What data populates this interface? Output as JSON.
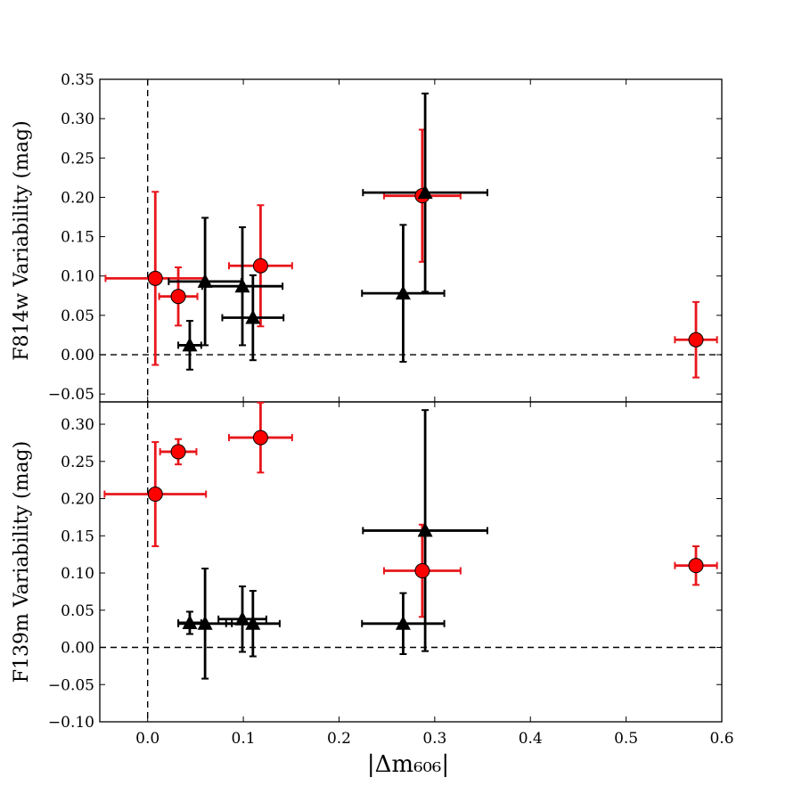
{
  "chart_data": {
    "type": "scatter",
    "xlabel": "|Δm₆₀₆|",
    "xlim": [
      -0.05,
      0.6
    ],
    "xticks": [
      0.0,
      0.1,
      0.2,
      0.3,
      0.4,
      0.5,
      0.6
    ],
    "xtick_labels": [
      "0.0",
      "0.1",
      "0.2",
      "0.3",
      "0.4",
      "0.5",
      "0.6"
    ],
    "series_styles": {
      "circles": {
        "marker": "circle",
        "fill": "#ff0000",
        "errorbar_color": "#e8161b"
      },
      "triangles": {
        "marker": "triangle",
        "fill": "#000000",
        "errorbar_color": "#000000"
      }
    },
    "panels": [
      {
        "id": "top",
        "ylabel": "F814w Variability (mag)",
        "ylim": [
          -0.06,
          0.35
        ],
        "yticks": [
          -0.05,
          0.0,
          0.05,
          0.1,
          0.15,
          0.2,
          0.25,
          0.3,
          0.35
        ],
        "ytick_labels": [
          "−0.05",
          "0.00",
          "0.05",
          "0.10",
          "0.15",
          "0.20",
          "0.25",
          "0.30",
          "0.35"
        ],
        "circles": [
          {
            "x": 0.008,
            "y": 0.097,
            "xerr": 0.052,
            "yerr": 0.11
          },
          {
            "x": 0.032,
            "y": 0.074,
            "xerr": 0.02,
            "yerr": 0.037
          },
          {
            "x": 0.118,
            "y": 0.113,
            "xerr": 0.033,
            "yerr": 0.077
          },
          {
            "x": 0.287,
            "y": 0.202,
            "xerr": 0.04,
            "yerr": 0.084
          },
          {
            "x": 0.573,
            "y": 0.019,
            "xerr": 0.022,
            "yerr": 0.048
          }
        ],
        "triangles": [
          {
            "x": 0.044,
            "y": 0.012,
            "xerr": 0.012,
            "yerr": 0.031
          },
          {
            "x": 0.06,
            "y": 0.093,
            "xerr": 0.038,
            "yerr": 0.081
          },
          {
            "x": 0.099,
            "y": 0.087,
            "xerr": 0.042,
            "yerr": 0.075
          },
          {
            "x": 0.11,
            "y": 0.047,
            "xerr": 0.032,
            "yerr": 0.054
          },
          {
            "x": 0.267,
            "y": 0.078,
            "xerr": 0.043,
            "yerr": 0.087
          },
          {
            "x": 0.29,
            "y": 0.206,
            "xerr": 0.065,
            "yerr": 0.126
          }
        ]
      },
      {
        "id": "bottom",
        "ylabel": "F139m Variability (mag)",
        "ylim": [
          -0.1,
          0.33
        ],
        "yticks": [
          -0.1,
          -0.05,
          0.0,
          0.05,
          0.1,
          0.15,
          0.2,
          0.25,
          0.3
        ],
        "ytick_labels": [
          "−0.10",
          "−0.05",
          "0.00",
          "0.05",
          "0.10",
          "0.15",
          "0.20",
          "0.25",
          "0.30"
        ],
        "circles": [
          {
            "x": 0.008,
            "y": 0.206,
            "xerr": 0.053,
            "yerr": 0.07
          },
          {
            "x": 0.032,
            "y": 0.263,
            "xerr": 0.019,
            "yerr": 0.017
          },
          {
            "x": 0.118,
            "y": 0.282,
            "xerr": 0.033,
            "yerr": 0.047
          },
          {
            "x": 0.287,
            "y": 0.103,
            "xerr": 0.04,
            "yerr": 0.062
          },
          {
            "x": 0.573,
            "y": 0.11,
            "xerr": 0.022,
            "yerr": 0.026
          }
        ],
        "triangles": [
          {
            "x": 0.044,
            "y": 0.033,
            "xerr": 0.012,
            "yerr": 0.015
          },
          {
            "x": 0.06,
            "y": 0.032,
            "xerr": 0.028,
            "yerr": 0.074
          },
          {
            "x": 0.099,
            "y": 0.038,
            "xerr": 0.025,
            "yerr": 0.044
          },
          {
            "x": 0.11,
            "y": 0.032,
            "xerr": 0.028,
            "yerr": 0.044
          },
          {
            "x": 0.267,
            "y": 0.032,
            "xerr": 0.043,
            "yerr": 0.041
          },
          {
            "x": 0.29,
            "y": 0.157,
            "xerr": 0.065,
            "yerr": 0.162
          }
        ]
      }
    ]
  }
}
